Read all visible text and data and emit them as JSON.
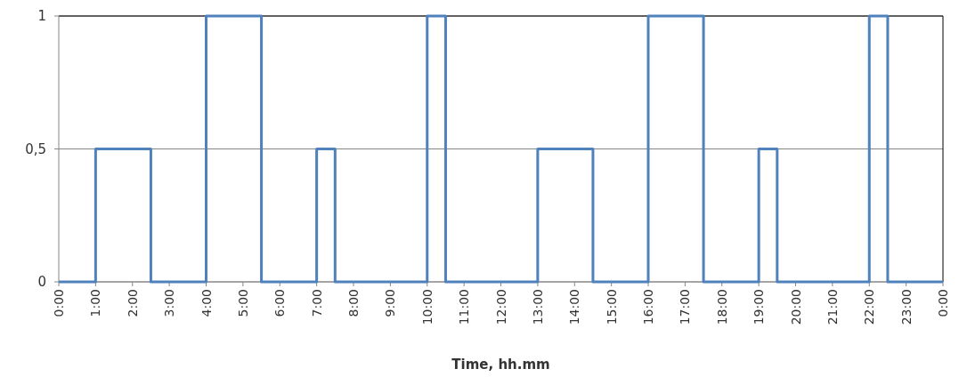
{
  "chart_data": {
    "type": "step",
    "xlabel": "Time, hh.mm",
    "x": [
      0,
      1,
      2.5,
      4,
      5.5,
      7,
      7.5,
      10,
      10.5,
      13,
      14.5,
      16,
      17.5,
      19,
      19.5,
      22,
      22.5,
      24
    ],
    "series": [
      {
        "color": "#4f81bd",
        "values": [
          0,
          0.5,
          0,
          1,
          0,
          0.5,
          0,
          1,
          0,
          0.5,
          0,
          1,
          0,
          0.5,
          0,
          1,
          0,
          0
        ]
      }
    ],
    "xlim": [
      0,
      24
    ],
    "xticks": [
      {
        "value": 0,
        "label": "0:00"
      },
      {
        "value": 1,
        "label": "1:00"
      },
      {
        "value": 2,
        "label": "2:00"
      },
      {
        "value": 3,
        "label": "3:00"
      },
      {
        "value": 4,
        "label": "4:00"
      },
      {
        "value": 5,
        "label": "5:00"
      },
      {
        "value": 6,
        "label": "6:00"
      },
      {
        "value": 7,
        "label": "7:00"
      },
      {
        "value": 8,
        "label": "8:00"
      },
      {
        "value": 9,
        "label": "9:00"
      },
      {
        "value": 10,
        "label": "10:00"
      },
      {
        "value": 11,
        "label": "11:00"
      },
      {
        "value": 12,
        "label": "12:00"
      },
      {
        "value": 13,
        "label": "13:00"
      },
      {
        "value": 14,
        "label": "14:00"
      },
      {
        "value": 15,
        "label": "15:00"
      },
      {
        "value": 16,
        "label": "16:00"
      },
      {
        "value": 17,
        "label": "17:00"
      },
      {
        "value": 18,
        "label": "18:00"
      },
      {
        "value": 19,
        "label": "19:00"
      },
      {
        "value": 20,
        "label": "20:00"
      },
      {
        "value": 21,
        "label": "21:00"
      },
      {
        "value": 22,
        "label": "22:00"
      },
      {
        "value": 23,
        "label": "23:00"
      },
      {
        "value": 24,
        "label": "0:00"
      }
    ],
    "ylim": [
      0,
      1
    ],
    "yticks": [
      0,
      {
        "value": 0.5,
        "label": "0,5"
      },
      1
    ],
    "grid": "y",
    "marker": "none",
    "line_style": "solid"
  }
}
